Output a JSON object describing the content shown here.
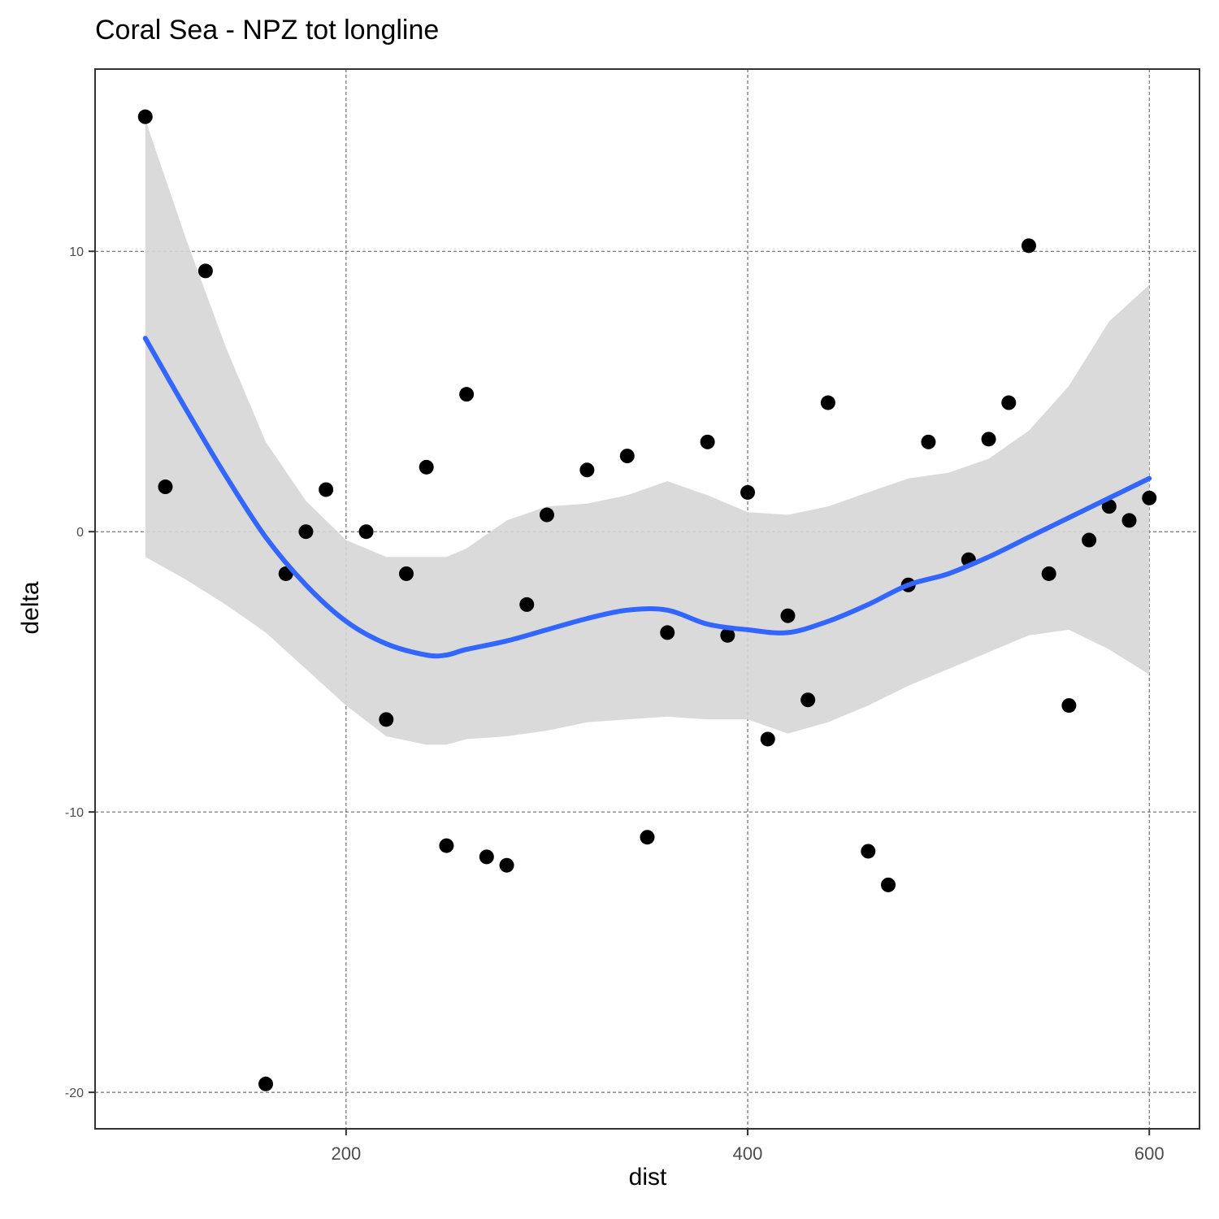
{
  "chart_data": {
    "type": "scatter",
    "title": "Coral Sea - NPZ tot longline",
    "xlabel": "dist",
    "ylabel": "delta",
    "xlim": [
      75,
      625
    ],
    "ylim": [
      -21.3,
      16.5
    ],
    "x_ticks": [
      200,
      400,
      600
    ],
    "y_ticks": [
      10,
      0,
      -10,
      -20
    ],
    "x_tick_labels": [
      "200",
      "400",
      "600"
    ],
    "y_tick_labels": [
      "10",
      "0",
      "-10",
      "-20"
    ],
    "grid": "dashed major gridlines",
    "legend": "none",
    "colors": {
      "points": "#000000",
      "smooth_line": "#3366ff",
      "confidence_band": "#d6d6d6"
    },
    "points": {
      "x": [
        100,
        110,
        130,
        160,
        170,
        180,
        190,
        210,
        220,
        230,
        240,
        250,
        260,
        270,
        280,
        290,
        300,
        320,
        340,
        350,
        360,
        380,
        390,
        400,
        410,
        420,
        430,
        440,
        460,
        470,
        480,
        490,
        510,
        520,
        530,
        540,
        550,
        560,
        570,
        580,
        590,
        600
      ],
      "y": [
        14.8,
        1.6,
        9.3,
        -19.7,
        -1.5,
        0.0,
        1.5,
        0.0,
        -6.7,
        -1.5,
        2.3,
        -11.2,
        4.9,
        -11.6,
        -11.9,
        -2.6,
        0.6,
        2.2,
        2.7,
        -10.9,
        -3.6,
        3.2,
        -3.7,
        1.4,
        -7.4,
        -3.0,
        -6.0,
        4.6,
        -11.4,
        -12.6,
        -1.9,
        3.2,
        -1.0,
        3.3,
        4.6,
        10.2,
        -1.5,
        -6.2,
        -0.3,
        0.9,
        0.4,
        1.2
      ]
    },
    "smooth": {
      "x": [
        100,
        120,
        140,
        160,
        180,
        200,
        220,
        240,
        250,
        260,
        280,
        300,
        320,
        340,
        360,
        380,
        400,
        420,
        440,
        460,
        480,
        500,
        520,
        540,
        560,
        580,
        600
      ],
      "y": [
        6.9,
        4.4,
        2.0,
        -0.2,
        -1.9,
        -3.2,
        -4.0,
        -4.4,
        -4.4,
        -4.2,
        -3.9,
        -3.5,
        -3.1,
        -2.8,
        -2.8,
        -3.3,
        -3.5,
        -3.6,
        -3.2,
        -2.6,
        -1.9,
        -1.5,
        -0.9,
        -0.2,
        0.5,
        1.2,
        1.9
      ],
      "lower": [
        -0.9,
        -1.7,
        -2.6,
        -3.6,
        -4.9,
        -6.2,
        -7.3,
        -7.6,
        -7.6,
        -7.4,
        -7.3,
        -7.1,
        -6.8,
        -6.7,
        -6.6,
        -6.7,
        -6.7,
        -7.2,
        -6.8,
        -6.2,
        -5.5,
        -4.9,
        -4.3,
        -3.7,
        -3.5,
        -4.2,
        -5.1
      ],
      "upper": [
        14.7,
        10.5,
        6.6,
        3.2,
        1.1,
        -0.3,
        -0.9,
        -0.9,
        -0.9,
        -0.6,
        0.4,
        0.9,
        1.0,
        1.3,
        1.8,
        1.3,
        0.7,
        0.6,
        0.9,
        1.4,
        1.9,
        2.1,
        2.6,
        3.6,
        5.2,
        7.5,
        8.8
      ]
    }
  }
}
